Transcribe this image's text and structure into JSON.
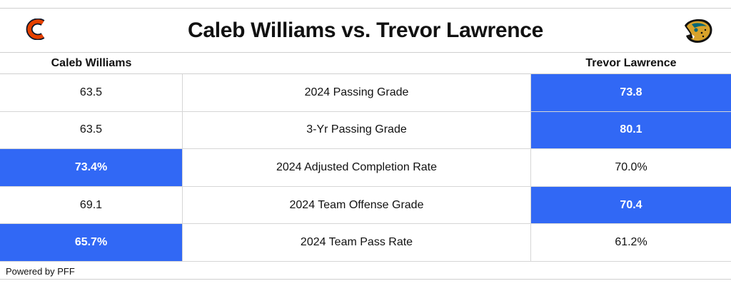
{
  "header": {
    "title": "Caleb Williams vs. Trevor Lawrence",
    "left_logo_icon": "bears-c-logo-icon",
    "right_logo_icon": "jaguars-head-logo-icon"
  },
  "columns": {
    "left": "Caleb Williams",
    "right": "Trevor Lawrence"
  },
  "colors": {
    "highlight": "#3168f5",
    "bears_orange": "#e64100",
    "bears_navy": "#0b162a",
    "jaguars_teal": "#006778",
    "jaguars_gold": "#d7a22a"
  },
  "rows": [
    {
      "metric": "2024 Passing Grade",
      "left": "63.5",
      "right": "73.8",
      "leader": "right"
    },
    {
      "metric": "3-Yr Passing Grade",
      "left": "63.5",
      "right": "80.1",
      "leader": "right"
    },
    {
      "metric": "2024 Adjusted Completion Rate",
      "left": "73.4%",
      "right": "70.0%",
      "leader": "left"
    },
    {
      "metric": "2024 Team Offense Grade",
      "left": "69.1",
      "right": "70.4",
      "leader": "right"
    },
    {
      "metric": "2024 Team Pass Rate",
      "left": "65.7%",
      "right": "61.2%",
      "leader": "left"
    }
  ],
  "footer": "Powered by PFF"
}
